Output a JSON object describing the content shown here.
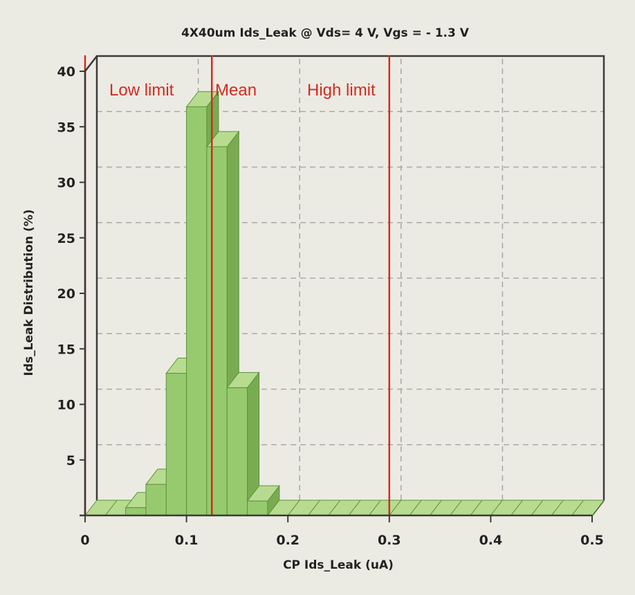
{
  "chart_data": {
    "type": "bar",
    "title": "4X40um Ids_Leak @ Vds= 4 V, Vgs = - 1.3 V",
    "xlabel": "CP Ids_Leak (uA)",
    "ylabel": "Ids_Leak Distribution (%)",
    "xlim": [
      0,
      0.5
    ],
    "ylim": [
      0,
      40
    ],
    "x_ticks": [
      "0",
      "0.1",
      "0.2",
      "0.3",
      "0.4",
      "0.5"
    ],
    "y_ticks": [
      "5",
      "10",
      "15",
      "20",
      "25",
      "30",
      "35",
      "40"
    ],
    "bins": [
      {
        "x0": 0.0,
        "x1": 0.02,
        "value": 0
      },
      {
        "x0": 0.02,
        "x1": 0.04,
        "value": 0
      },
      {
        "x0": 0.04,
        "x1": 0.06,
        "value": 0.7
      },
      {
        "x0": 0.06,
        "x1": 0.08,
        "value": 2.8
      },
      {
        "x0": 0.08,
        "x1": 0.1,
        "value": 12.8
      },
      {
        "x0": 0.1,
        "x1": 0.12,
        "value": 36.8
      },
      {
        "x0": 0.12,
        "x1": 0.14,
        "value": 33.2
      },
      {
        "x0": 0.14,
        "x1": 0.16,
        "value": 11.5
      },
      {
        "x0": 0.16,
        "x1": 0.18,
        "value": 1.3
      },
      {
        "x0": 0.18,
        "x1": 0.2,
        "value": 0
      },
      {
        "x0": 0.2,
        "x1": 0.22,
        "value": 0
      },
      {
        "x0": 0.22,
        "x1": 0.24,
        "value": 0
      },
      {
        "x0": 0.24,
        "x1": 0.26,
        "value": 0
      },
      {
        "x0": 0.26,
        "x1": 0.28,
        "value": 0
      },
      {
        "x0": 0.28,
        "x1": 0.3,
        "value": 0
      },
      {
        "x0": 0.3,
        "x1": 0.32,
        "value": 0
      },
      {
        "x0": 0.32,
        "x1": 0.34,
        "value": 0
      },
      {
        "x0": 0.34,
        "x1": 0.36,
        "value": 0
      },
      {
        "x0": 0.36,
        "x1": 0.38,
        "value": 0
      },
      {
        "x0": 0.38,
        "x1": 0.4,
        "value": 0
      },
      {
        "x0": 0.4,
        "x1": 0.42,
        "value": 0
      },
      {
        "x0": 0.42,
        "x1": 0.44,
        "value": 0
      },
      {
        "x0": 0.44,
        "x1": 0.46,
        "value": 0
      },
      {
        "x0": 0.46,
        "x1": 0.48,
        "value": 0
      },
      {
        "x0": 0.48,
        "x1": 0.5,
        "value": 0
      }
    ],
    "reference_lines": [
      {
        "label": "Low limit",
        "x": 0.0
      },
      {
        "label": "Mean",
        "x": 0.125
      },
      {
        "label": "High limit",
        "x": 0.3
      }
    ],
    "grid": true,
    "style": "3d",
    "colors": {
      "bar_front": "#97ca6f",
      "bar_top": "#b7dc8f",
      "bar_side": "#79ac52",
      "bar_edge": "#5e8f3c",
      "reference_line": "#d42a20",
      "grid": "#a9a9a9",
      "axis": "#3a3a3a",
      "background": "#ecebe3"
    }
  }
}
